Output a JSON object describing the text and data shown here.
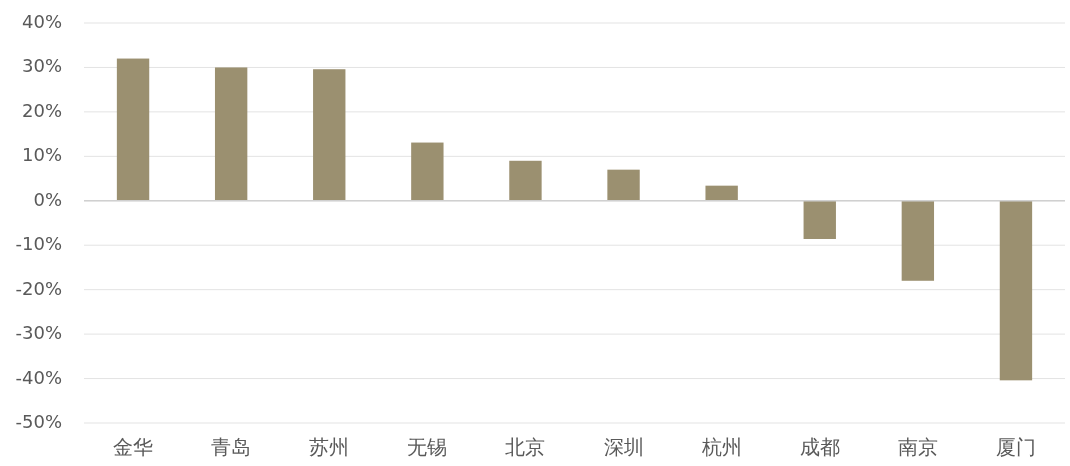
{
  "chart_data": {
    "type": "bar",
    "categories": [
      "金华",
      "青岛",
      "苏州",
      "无锡",
      "北京",
      "深圳",
      "杭州",
      "成都",
      "南京",
      "厦门"
    ],
    "values": [
      0.32,
      0.3,
      0.296,
      0.131,
      0.09,
      0.07,
      0.034,
      -0.086,
      -0.18,
      -0.404
    ],
    "color": "#9b9070",
    "ylim": [
      -0.5,
      0.4
    ],
    "yticks": [
      {
        "value": -0.5,
        "label": "-50%"
      },
      {
        "value": -0.4,
        "label": "-40%"
      },
      {
        "value": -0.3,
        "label": "-30%"
      },
      {
        "value": -0.2,
        "label": "-20%"
      },
      {
        "value": -0.1,
        "label": "-10%"
      },
      {
        "value": 0,
        "label": "0%"
      },
      {
        "value": 0.1,
        "label": "10%"
      },
      {
        "value": 0.2,
        "label": "20%"
      },
      {
        "value": 0.3,
        "label": "30%"
      },
      {
        "value": 0.4,
        "label": "40%"
      }
    ],
    "grid": "y"
  }
}
